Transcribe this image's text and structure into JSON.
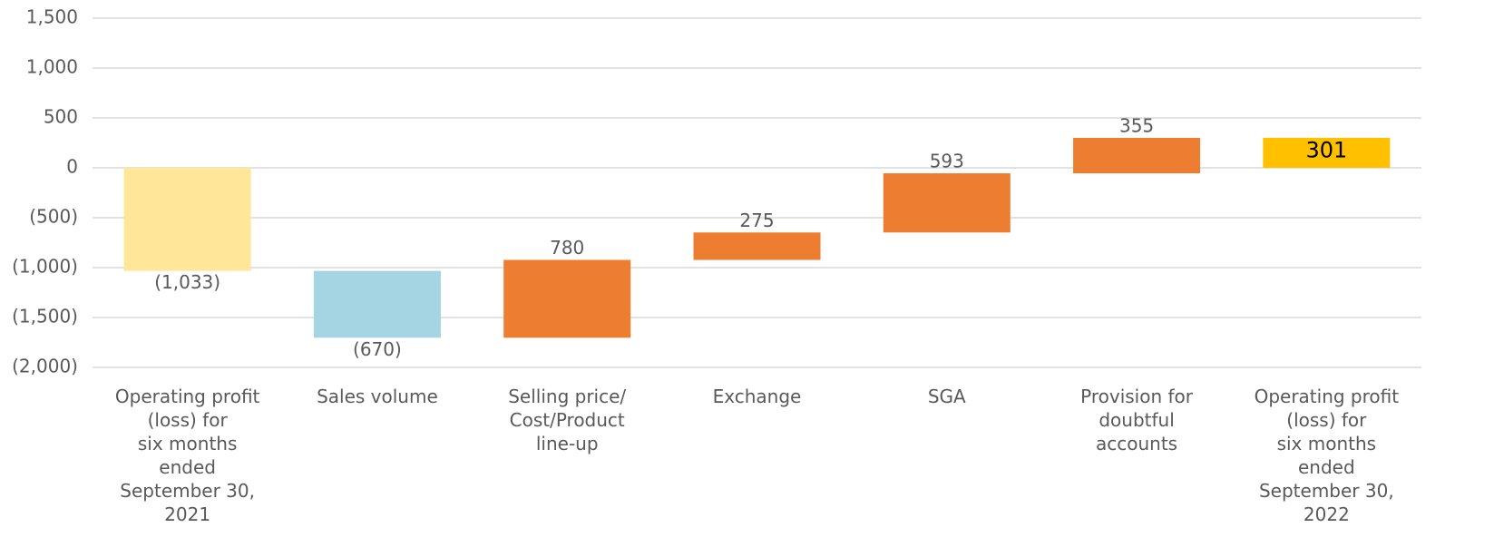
{
  "chart_data": {
    "type": "waterfall",
    "categories": [
      "Operating profit\n(loss) for\nsix months\nended\nSeptember 30,\n2021",
      "Sales volume",
      "Selling price/\nCost/Product\nline-up",
      "Exchange",
      "SGA",
      "Provision for\ndoubtful\naccounts",
      "Operating profit\n(loss) for\nsix months\nended\nSeptember 30,\n2022"
    ],
    "values": [
      -1033,
      -670,
      780,
      275,
      593,
      355,
      301
    ],
    "value_labels": [
      "(1,033)",
      "(670)",
      "780",
      "275",
      "593",
      "355",
      "301"
    ],
    "totals": [
      true,
      false,
      false,
      false,
      false,
      false,
      true
    ],
    "colors": [
      "#ffe699",
      "#a5d5e2",
      "#ed7d31",
      "#ed7d31",
      "#ed7d31",
      "#ed7d31",
      "#ffc000"
    ],
    "ylim": [
      -2000,
      1500
    ],
    "yticks": [
      {
        "value": -2000,
        "label": "(2,000)"
      },
      {
        "value": -1500,
        "label": "(1,500)"
      },
      {
        "value": -1000,
        "label": "(1,000)"
      },
      {
        "value": -500,
        "label": "(500)"
      },
      0,
      500,
      {
        "value": 1000,
        "label": "1,000"
      },
      {
        "value": 1500,
        "label": "1,500"
      }
    ],
    "grid": true
  }
}
